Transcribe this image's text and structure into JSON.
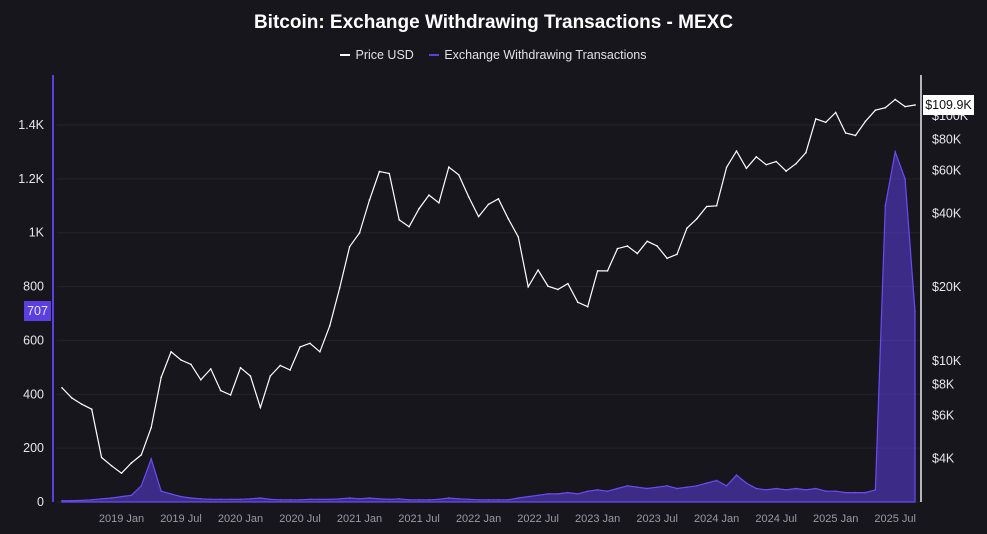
{
  "chart_data": {
    "type": "line",
    "title": "Bitcoin: Exchange Withdrawing Transactions - MEXC",
    "x_start": "2018-07",
    "x_step": "month",
    "x_tick_labels": [
      "2019 Jan",
      "2019 Jul",
      "2020 Jan",
      "2020 Jul",
      "2021 Jan",
      "2021 Jul",
      "2022 Jan",
      "2022 Jul",
      "2023 Jan",
      "2023 Jul",
      "2024 Jan",
      "2024 Jul",
      "2025 Jan",
      "2025 Jul"
    ],
    "left_axis": {
      "ticks": [
        "0",
        "200",
        "400",
        "600",
        "800",
        "1K",
        "1.2K",
        "1.4K"
      ],
      "tick_values": [
        0,
        200,
        400,
        600,
        800,
        1000,
        1200,
        1400
      ],
      "range": [
        0,
        1400
      ],
      "current_label": "707"
    },
    "right_axis": {
      "scale": "log",
      "ticks": [
        "$4K",
        "$6K",
        "$8K",
        "$10K",
        "$20K",
        "$40K",
        "$60K",
        "$80K",
        "$100K"
      ],
      "tick_values": [
        4000,
        6000,
        8000,
        10000,
        20000,
        40000,
        60000,
        80000,
        100000
      ],
      "current_label": "$109.9K"
    },
    "grid": true,
    "legend_position": "top",
    "colors": {
      "price": "#ffffff",
      "withdrawals": "#5b3fe0",
      "background": "#17161d"
    },
    "series": [
      {
        "name": "Price USD",
        "axis": "right",
        "values": [
          7700,
          7000,
          6600,
          6300,
          4000,
          3700,
          3450,
          3800,
          4100,
          5300,
          8500,
          10800,
          10000,
          9600,
          8300,
          9200,
          7500,
          7200,
          9300,
          8600,
          6400,
          8600,
          9500,
          9100,
          11300,
          11700,
          10800,
          13800,
          19700,
          29000,
          33000,
          45000,
          58800,
          57700,
          37300,
          35000,
          41500,
          47100,
          43800,
          61300,
          57000,
          46300,
          38500,
          43200,
          45500,
          37700,
          31800,
          19900,
          23300,
          20000,
          19400,
          20500,
          17200,
          16500,
          23100,
          23100,
          28500,
          29200,
          27200,
          30500,
          29200,
          26000,
          27000,
          34500,
          37700,
          42300,
          42600,
          61200,
          71300,
          60600,
          67500,
          62700,
          64600,
          59000,
          63300,
          70200,
          96400,
          93400,
          102400,
          84400,
          82500,
          94200,
          104600,
          107100,
          115700,
          108200,
          109900
        ]
      },
      {
        "name": "Exchange Withdrawing Transactions",
        "axis": "left",
        "values": [
          5,
          5,
          6,
          8,
          12,
          15,
          20,
          25,
          60,
          160,
          40,
          30,
          20,
          15,
          12,
          10,
          10,
          10,
          10,
          12,
          15,
          10,
          8,
          8,
          8,
          10,
          10,
          10,
          12,
          15,
          12,
          15,
          12,
          10,
          12,
          8,
          8,
          8,
          10,
          15,
          12,
          10,
          8,
          8,
          8,
          8,
          15,
          20,
          25,
          30,
          30,
          35,
          30,
          40,
          45,
          40,
          50,
          60,
          55,
          50,
          55,
          60,
          50,
          55,
          60,
          70,
          80,
          60,
          100,
          70,
          50,
          45,
          50,
          45,
          50,
          45,
          50,
          40,
          40,
          35,
          35,
          35,
          45,
          1100,
          1300,
          1200,
          707
        ]
      }
    ]
  }
}
